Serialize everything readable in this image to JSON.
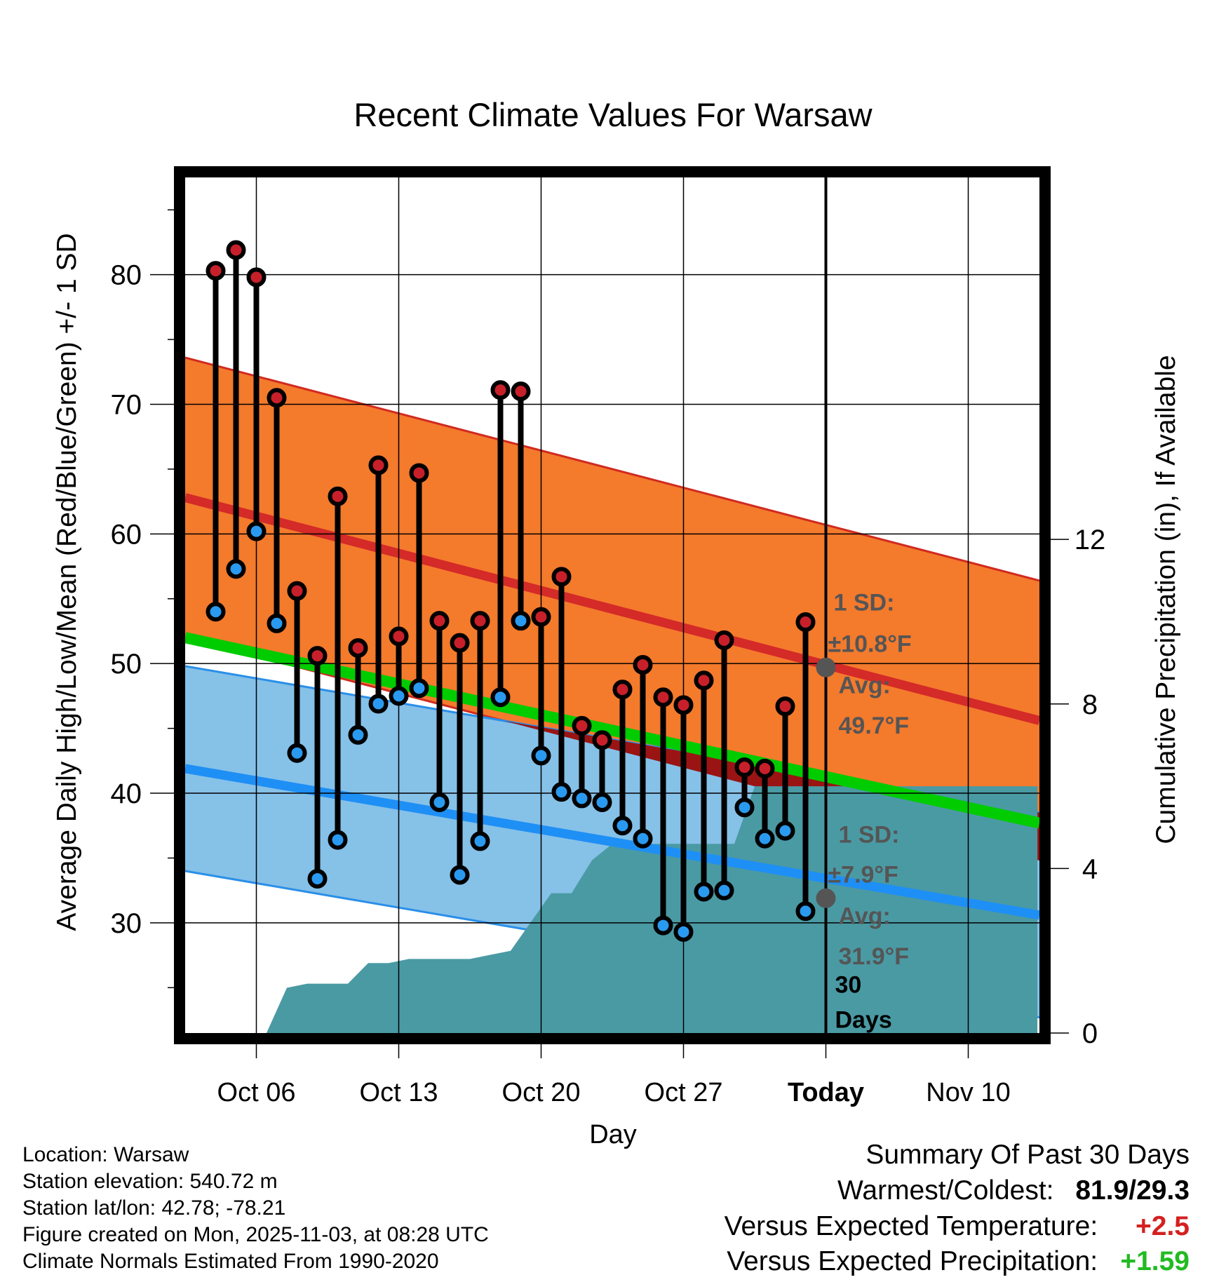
{
  "colors": {
    "high": "#e21f26",
    "low": "#1e90ff",
    "mean": "#00cc00",
    "high_band": "#f47a2c",
    "low_band": "#86c1e8",
    "precip": "#4a9aa4",
    "overlap": "#9a1414",
    "marker_high": "#c8202a",
    "marker_low": "#2a9af0",
    "annot": "#555555",
    "positive_temp": "#d42020",
    "positive_precip": "#22bb22"
  },
  "chart_data": {
    "type": "line",
    "title": "Recent Climate Values For Warsaw",
    "xlabel": "Day",
    "ylabel_left": "Average Daily High/Low/Mean (Red/Blue/Green) +/- 1 SD",
    "ylabel_right": "Cumulative Precipitation (in), If Available",
    "x_range": [
      0.5,
      42.5
    ],
    "ylim_left": [
      21.5,
      87.5
    ],
    "ylim_right": [
      0,
      20.8
    ],
    "x_ticks": [
      {
        "x": 4,
        "label": "Oct 06"
      },
      {
        "x": 11,
        "label": "Oct 13"
      },
      {
        "x": 18,
        "label": "Oct 20"
      },
      {
        "x": 25,
        "label": "Oct 27"
      },
      {
        "x": 32,
        "label": "Today"
      },
      {
        "x": 39,
        "label": "Nov 10"
      }
    ],
    "y_ticks_left": [
      30,
      40,
      50,
      60,
      70,
      80
    ],
    "y_ticks_right": [
      0,
      4,
      8,
      12
    ],
    "today_x": 32,
    "normals": {
      "high_avg": [
        62.8,
        45.6
      ],
      "high_sd": 10.8,
      "low_avg": [
        41.9,
        30.6
      ],
      "low_sd": 7.9,
      "mean_avg": [
        52.0,
        37.7
      ]
    },
    "daily": {
      "x": [
        2,
        3,
        4,
        5,
        6,
        7,
        8,
        9,
        10,
        11,
        12,
        13,
        14,
        15,
        16,
        17,
        18,
        19,
        20,
        21,
        22,
        23,
        24,
        25,
        26,
        27,
        28,
        29,
        30,
        31
      ],
      "high": [
        80.3,
        81.9,
        79.8,
        70.5,
        55.6,
        50.6,
        62.9,
        51.2,
        65.3,
        52.1,
        64.7,
        53.3,
        51.6,
        53.3,
        71.1,
        71.0,
        53.6,
        56.7,
        45.2,
        44.1,
        48.0,
        49.9,
        47.4,
        46.8,
        48.7,
        51.8,
        42.0,
        41.9,
        46.7,
        53.2
      ],
      "low": [
        54.0,
        57.3,
        60.2,
        53.1,
        43.1,
        33.4,
        36.4,
        44.5,
        46.9,
        47.5,
        48.1,
        39.3,
        33.7,
        36.3,
        47.4,
        53.3,
        42.9,
        40.1,
        39.6,
        39.3,
        37.5,
        36.5,
        29.8,
        29.3,
        32.4,
        32.5,
        38.9,
        36.5,
        37.1,
        30.9
      ]
    },
    "precip": {
      "x": [
        3.7,
        4.5,
        5.5,
        6.5,
        7.5,
        8.5,
        9.5,
        10.5,
        11.5,
        12.5,
        13.5,
        14.5,
        15.5,
        16.5,
        17.5,
        18.5,
        19.5,
        20.5,
        21.5,
        22.5,
        23.5,
        24.5,
        25.5,
        26.5,
        27.5,
        28.5,
        42.4
      ],
      "values": [
        0,
        0.0,
        1.1,
        1.2,
        1.2,
        1.2,
        1.7,
        1.7,
        1.8,
        1.8,
        1.8,
        1.8,
        1.9,
        2.0,
        2.7,
        3.4,
        3.4,
        4.2,
        4.6,
        4.6,
        4.6,
        4.6,
        4.6,
        4.6,
        4.6,
        6.0,
        6.0
      ]
    },
    "annotations": {
      "high_sd_label": "1 SD:",
      "high_sd_value": "±10.8°F",
      "high_avg_label": "Avg:",
      "high_avg_value": "49.7°F",
      "low_sd_label": "1 SD:",
      "low_sd_value": "±7.9°F",
      "low_avg_label": "Avg:",
      "low_avg_value": "31.9°F",
      "days_count": "30",
      "days_label": "Days",
      "high_avg_num": 49.7,
      "low_avg_num": 31.9
    }
  },
  "meta": {
    "location": "Location: Warsaw",
    "elevation": "Station elevation: 540.72 m",
    "latlon": "Station lat/lon: 42.78; -78.21",
    "created": "Figure created on Mon, 2025-11-03, at 08:28 UTC",
    "normals": "Climate Normals Estimated From 1990-2020"
  },
  "summary": {
    "title": "Summary Of Past 30 Days",
    "warm_cold_label": "Warmest/Coldest:",
    "warm_cold_value": "81.9/29.3",
    "temp_label": "Versus Expected Temperature:",
    "temp_value": "+2.5",
    "precip_label": "Versus Expected Precipitation:",
    "precip_value": "+1.59"
  }
}
